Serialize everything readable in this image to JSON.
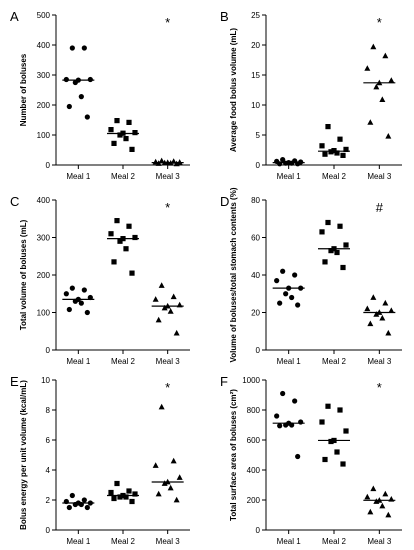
{
  "chart_data": [
    {
      "type": "scatter",
      "panel": "A",
      "ylabel": "Number of boluses",
      "categories": [
        "Meal 1",
        "Meal 2",
        "Meal 3"
      ],
      "ylim": [
        0,
        500
      ],
      "yticks": [
        0,
        100,
        200,
        300,
        400,
        500
      ],
      "series": [
        {
          "category": "Meal 1",
          "marker": "circle",
          "median": 283,
          "values": [
            390,
            390,
            285,
            285,
            283,
            275,
            228,
            195,
            160
          ]
        },
        {
          "category": "Meal 2",
          "marker": "square",
          "median": 105,
          "values": [
            148,
            142,
            118,
            108,
            106,
            100,
            88,
            72,
            52
          ]
        },
        {
          "category": "Meal 3",
          "marker": "triangle",
          "median": 8,
          "values": [
            14,
            12,
            10,
            9,
            8,
            7,
            6,
            5,
            4
          ]
        }
      ],
      "annotations": [
        {
          "category": "Meal 3",
          "text": "*"
        }
      ]
    },
    {
      "type": "scatter",
      "panel": "B",
      "ylabel": "Average food bolus volume (mL)",
      "categories": [
        "Meal 1",
        "Meal 2",
        "Meal 3"
      ],
      "ylim": [
        0,
        25
      ],
      "yticks": [
        0,
        5,
        10,
        15,
        20,
        25
      ],
      "series": [
        {
          "category": "Meal 1",
          "marker": "circle",
          "median": 0.4,
          "values": [
            0.9,
            0.7,
            0.6,
            0.5,
            0.4,
            0.3,
            0.3,
            0.2,
            0.2
          ]
        },
        {
          "category": "Meal 2",
          "marker": "square",
          "median": 2.3,
          "values": [
            6.4,
            4.3,
            3.2,
            2.6,
            2.4,
            2.2,
            2.0,
            1.8,
            1.6
          ]
        },
        {
          "category": "Meal 3",
          "marker": "triangle",
          "median": 13.7,
          "values": [
            19.7,
            18.2,
            16.1,
            14.1,
            13.7,
            13.0,
            10.9,
            7.1,
            4.8
          ]
        }
      ],
      "annotations": [
        {
          "category": "Meal 3",
          "text": "*"
        }
      ]
    },
    {
      "type": "scatter",
      "panel": "C",
      "ylabel": "Total volume of boluses (mL)",
      "categories": [
        "Meal 1",
        "Meal 2",
        "Meal 3"
      ],
      "ylim": [
        0,
        400
      ],
      "yticks": [
        0,
        100,
        200,
        300,
        400
      ],
      "series": [
        {
          "category": "Meal 1",
          "marker": "circle",
          "median": 135,
          "values": [
            165,
            160,
            150,
            140,
            135,
            130,
            125,
            108,
            100
          ]
        },
        {
          "category": "Meal 2",
          "marker": "square",
          "median": 297,
          "values": [
            345,
            330,
            310,
            300,
            297,
            290,
            270,
            235,
            205
          ]
        },
        {
          "category": "Meal 3",
          "marker": "triangle",
          "median": 117,
          "values": [
            172,
            142,
            135,
            120,
            117,
            112,
            103,
            80,
            45
          ]
        }
      ],
      "annotations": [
        {
          "category": "Meal 3",
          "text": "*"
        }
      ]
    },
    {
      "type": "scatter",
      "panel": "D",
      "ylabel": "Volume of boluses/total stomach contents (%)",
      "categories": [
        "Meal 1",
        "Meal 2",
        "Meal 3"
      ],
      "ylim": [
        0,
        80
      ],
      "yticks": [
        0,
        20,
        40,
        60,
        80
      ],
      "series": [
        {
          "category": "Meal 1",
          "marker": "circle",
          "median": 33,
          "values": [
            42,
            40,
            37,
            33,
            33,
            30,
            28,
            25,
            24
          ]
        },
        {
          "category": "Meal 2",
          "marker": "square",
          "median": 54,
          "values": [
            68,
            66,
            63,
            56,
            54,
            53,
            52,
            47,
            44
          ]
        },
        {
          "category": "Meal 3",
          "marker": "triangle",
          "median": 20,
          "values": [
            28,
            25,
            22,
            21,
            20,
            19,
            17,
            14,
            9
          ]
        }
      ],
      "annotations": [
        {
          "category": "Meal 3",
          "text": "#"
        }
      ]
    },
    {
      "type": "scatter",
      "panel": "E",
      "ylabel": "Bolus energy per unit volume (kcal/mL)",
      "categories": [
        "Meal 1",
        "Meal 2",
        "Meal 3"
      ],
      "ylim": [
        0,
        10
      ],
      "yticks": [
        0,
        2,
        4,
        6,
        8,
        10
      ],
      "series": [
        {
          "category": "Meal 1",
          "marker": "circle",
          "median": 1.8,
          "values": [
            2.3,
            2.0,
            1.9,
            1.8,
            1.8,
            1.7,
            1.7,
            1.5,
            1.5
          ]
        },
        {
          "category": "Meal 2",
          "marker": "square",
          "median": 2.3,
          "values": [
            3.1,
            2.6,
            2.5,
            2.4,
            2.3,
            2.2,
            2.2,
            2.1,
            1.9
          ]
        },
        {
          "category": "Meal 3",
          "marker": "triangle",
          "median": 3.2,
          "values": [
            8.2,
            4.6,
            4.3,
            3.5,
            3.2,
            3.1,
            2.8,
            2.4,
            2.0
          ]
        }
      ],
      "annotations": [
        {
          "category": "Meal 3",
          "text": "*"
        }
      ]
    },
    {
      "type": "scatter",
      "panel": "F",
      "ylabel": "Total surface area of boluses (cm²)",
      "categories": [
        "Meal 1",
        "Meal 2",
        "Meal 3"
      ],
      "ylim": [
        0,
        1000
      ],
      "yticks": [
        0,
        200,
        400,
        600,
        800,
        1000
      ],
      "series": [
        {
          "category": "Meal 1",
          "marker": "circle",
          "median": 712,
          "values": [
            910,
            860,
            760,
            720,
            712,
            700,
            700,
            695,
            490
          ]
        },
        {
          "category": "Meal 2",
          "marker": "square",
          "median": 597,
          "values": [
            825,
            800,
            720,
            660,
            597,
            590,
            520,
            470,
            440
          ]
        },
        {
          "category": "Meal 3",
          "marker": "triangle",
          "median": 198,
          "values": [
            275,
            240,
            220,
            205,
            198,
            190,
            160,
            120,
            100
          ]
        }
      ],
      "annotations": [
        {
          "category": "Meal 3",
          "text": "*"
        }
      ]
    }
  ]
}
